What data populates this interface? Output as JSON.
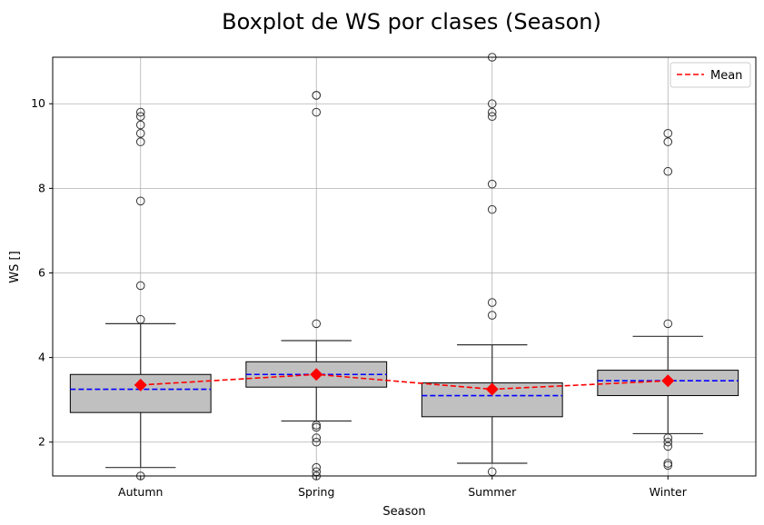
{
  "chart_data": {
    "type": "boxplot",
    "title": "Boxplot de WS por clases (Season)",
    "xlabel": "Season",
    "ylabel": "WS []",
    "ylim": [
      1.2,
      11.1
    ],
    "yticks": [
      2,
      4,
      6,
      8,
      10
    ],
    "grid": true,
    "legend": {
      "position": "top-right",
      "entries": [
        "Mean"
      ]
    },
    "colors": {
      "box": "#c0c0c0",
      "median": "#0000ff",
      "mean": "#ff0000",
      "whisker": "#333333",
      "grid": "#b0b0b0"
    },
    "categories": [
      "Autumn",
      "Spring",
      "Summer",
      "Winter"
    ],
    "boxes": [
      {
        "q1": 2.7,
        "median": 3.25,
        "q3": 3.6,
        "whislo": 1.4,
        "whishi": 4.8,
        "fliers": [
          9.8,
          9.7,
          9.5,
          9.3,
          9.1,
          7.7,
          5.7,
          4.9,
          1.2
        ]
      },
      {
        "q1": 3.3,
        "median": 3.6,
        "q3": 3.9,
        "whislo": 2.5,
        "whishi": 4.4,
        "fliers": [
          10.2,
          10.2,
          9.8,
          4.8,
          2.4,
          2.35,
          2.1,
          2.0,
          1.4,
          1.3,
          1.2
        ]
      },
      {
        "q1": 2.6,
        "median": 3.1,
        "q3": 3.4,
        "whislo": 1.5,
        "whishi": 4.3,
        "fliers": [
          11.1,
          10.0,
          9.8,
          9.7,
          8.1,
          7.5,
          5.3,
          5.0,
          1.3
        ]
      },
      {
        "q1": 3.1,
        "median": 3.45,
        "q3": 3.7,
        "whislo": 2.2,
        "whishi": 4.5,
        "fliers": [
          9.3,
          9.1,
          8.4,
          4.8,
          2.1,
          2.0,
          1.9,
          1.5,
          1.45
        ]
      }
    ],
    "mean_values": [
      3.35,
      3.6,
      3.25,
      3.45
    ]
  }
}
